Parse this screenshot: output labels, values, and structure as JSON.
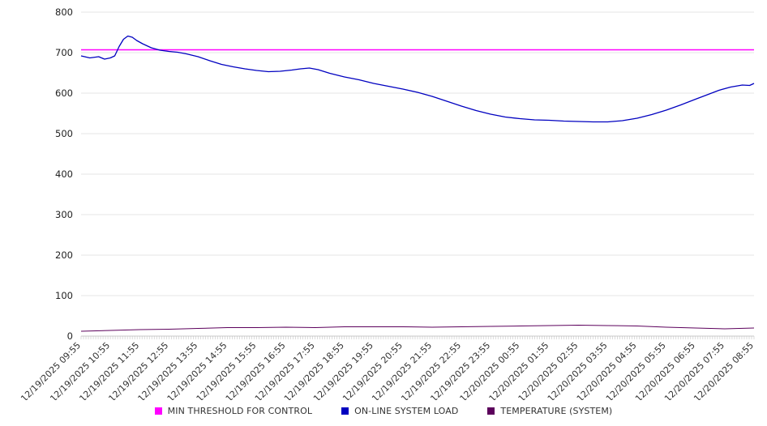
{
  "chart_data": {
    "type": "line",
    "title": "",
    "xlabel": "",
    "ylabel": "",
    "ylim": [
      0,
      800
    ],
    "yticks": [
      0,
      100,
      200,
      300,
      400,
      500,
      600,
      700,
      800
    ],
    "grid": true,
    "legend_position": "bottom",
    "x_labels": [
      "12/19/2025 09:55",
      "12/19/2025 10:55",
      "12/19/2025 11:55",
      "12/19/2025 12:55",
      "12/19/2025 13:55",
      "12/19/2025 14:55",
      "12/19/2025 15:55",
      "12/19/2025 16:55",
      "12/19/2025 17:55",
      "12/19/2025 18:55",
      "12/19/2025 19:55",
      "12/19/2025 20:55",
      "12/19/2025 21:55",
      "12/19/2025 22:55",
      "12/19/2025 23:55",
      "12/20/2025 00:55",
      "12/20/2025 01:55",
      "12/20/2025 02:55",
      "12/20/2025 03:55",
      "12/20/2025 04:55",
      "12/20/2025 05:55",
      "12/20/2025 06:55",
      "12/20/2025 07:55",
      "12/20/2025 08:55"
    ],
    "series": [
      {
        "name": "MIN THRESHOLD FOR CONTROL",
        "color": "#ff00ff",
        "style": "hline",
        "value": 707
      },
      {
        "name": "ON-LINE SYSTEM LOAD",
        "color": "#0000c0",
        "style": "line",
        "x": [
          0,
          0.3,
          0.6,
          0.8,
          1.0,
          1.15,
          1.3,
          1.45,
          1.6,
          1.75,
          1.9,
          2.1,
          2.4,
          2.7,
          3.0,
          3.3,
          3.6,
          4.0,
          4.4,
          4.8,
          5.2,
          5.6,
          6.0,
          6.4,
          6.8,
          7.2,
          7.5,
          7.8,
          8.1,
          8.5,
          9.0,
          9.5,
          10.0,
          10.5,
          11.0,
          11.5,
          12.0,
          12.5,
          13.0,
          13.5,
          14.0,
          14.5,
          15.0,
          15.5,
          16.0,
          16.5,
          17.0,
          17.5,
          18.0,
          18.5,
          19.0,
          19.5,
          20.0,
          20.5,
          21.0,
          21.4,
          21.8,
          22.2,
          22.6,
          22.85,
          23.0
        ],
        "values": [
          692,
          687,
          690,
          684,
          687,
          692,
          715,
          733,
          741,
          738,
          730,
          722,
          712,
          706,
          703,
          701,
          697,
          690,
          680,
          671,
          665,
          660,
          656,
          653,
          654,
          657,
          660,
          662,
          658,
          649,
          640,
          633,
          624,
          617,
          610,
          602,
          592,
          580,
          568,
          557,
          548,
          541,
          537,
          534,
          533,
          531,
          530,
          529,
          529,
          532,
          538,
          547,
          558,
          571,
          585,
          596,
          607,
          615,
          620,
          619,
          624
        ]
      },
      {
        "name": "TEMPERATURE (SYSTEM)",
        "color": "#5c005c",
        "style": "line",
        "x": [
          0,
          1,
          2,
          3,
          4,
          5,
          6,
          7,
          8,
          9,
          10,
          11,
          12,
          13,
          14,
          15,
          16,
          17,
          18,
          19,
          20,
          21,
          22,
          23
        ],
        "values": [
          12,
          14,
          16,
          17,
          19,
          21,
          21,
          22,
          21,
          23,
          23,
          23,
          22,
          23,
          24,
          25,
          26,
          27,
          26,
          25,
          22,
          20,
          18,
          20
        ]
      }
    ]
  }
}
